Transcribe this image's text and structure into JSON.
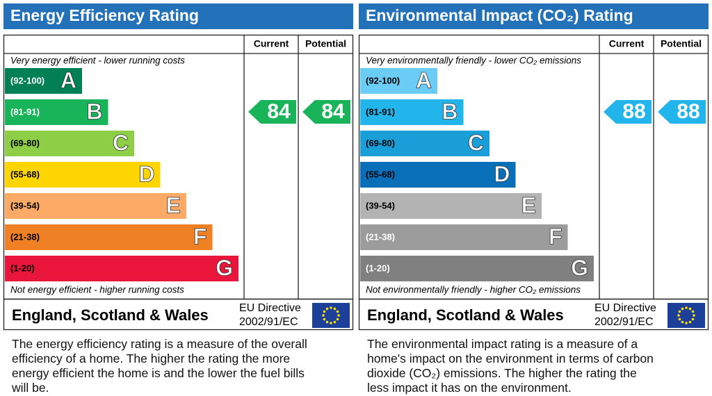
{
  "panels": [
    {
      "title": "Energy Efficiency Rating",
      "columns": [
        "Current",
        "Potential"
      ],
      "top_note": "Very energy efficient - lower running costs",
      "bottom_note": "Not energy efficient - higher running costs",
      "bands": [
        {
          "range": "(92-100)",
          "letter": "A",
          "color": "#008054",
          "label_color": "#ffffff"
        },
        {
          "range": "(81-91)",
          "letter": "B",
          "color": "#19b459",
          "label_color": "#ffffff"
        },
        {
          "range": "(69-80)",
          "letter": "C",
          "color": "#8dce46",
          "label_color": "#000000"
        },
        {
          "range": "(55-68)",
          "letter": "D",
          "color": "#ffd500",
          "label_color": "#000000"
        },
        {
          "range": "(39-54)",
          "letter": "E",
          "color": "#fcaa65",
          "label_color": "#000000"
        },
        {
          "range": "(21-38)",
          "letter": "F",
          "color": "#ef8023",
          "label_color": "#000000"
        },
        {
          "range": "(1-20)",
          "letter": "G",
          "color": "#e9153b",
          "label_color": "#000000"
        }
      ],
      "current": 84,
      "potential": 84,
      "region": "England, Scotland & Wales",
      "directive": [
        "EU Directive",
        "2002/91/EC"
      ],
      "description": "The energy efficiency rating is a measure of the overall efficiency of a home. The higher the rating the more energy efficient the home is and the lower the fuel bills will be."
    },
    {
      "title": "Environmental Impact (CO₂) Rating",
      "columns": [
        "Current",
        "Potential"
      ],
      "top_note": "Very environmentally friendly - lower CO₂ emissions",
      "bottom_note": "Not environmentally friendly - higher CO₂ emissions",
      "bands": [
        {
          "range": "(92-100)",
          "letter": "A",
          "color": "#6bcdf5",
          "label_color": "#000000"
        },
        {
          "range": "(81-91)",
          "letter": "B",
          "color": "#22b5ec",
          "label_color": "#000000"
        },
        {
          "range": "(69-80)",
          "letter": "C",
          "color": "#1a9ed8",
          "label_color": "#000000"
        },
        {
          "range": "(55-68)",
          "letter": "D",
          "color": "#0a6fb9",
          "label_color": "#000000"
        },
        {
          "range": "(39-54)",
          "letter": "E",
          "color": "#b3b3b3",
          "label_color": "#000000"
        },
        {
          "range": "(21-38)",
          "letter": "F",
          "color": "#9c9c9c",
          "label_color": "#ffffff"
        },
        {
          "range": "(1-20)",
          "letter": "G",
          "color": "#808080",
          "label_color": "#ffffff"
        }
      ],
      "current": 88,
      "potential": 88,
      "region": "England, Scotland & Wales",
      "directive": [
        "EU Directive",
        "2002/91/EC"
      ],
      "description": "The environmental impact rating is a measure of a home's impact on the environment in terms of carbon dioxide (CO₂) emissions. The higher the rating the less impact it has on the environment."
    }
  ]
}
